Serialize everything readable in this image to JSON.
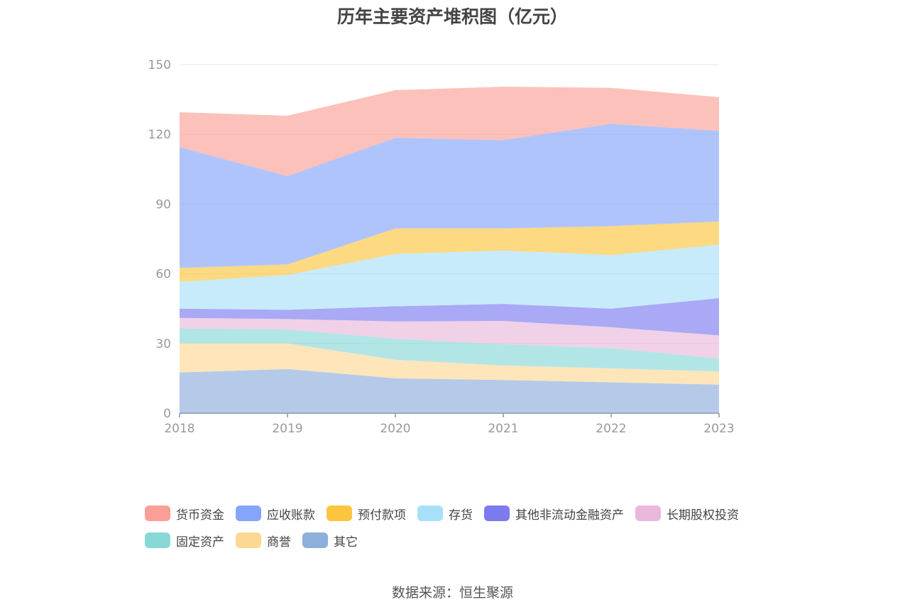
{
  "source_text": "数据来源：恒生聚源",
  "chart_data": {
    "type": "area",
    "stacked": true,
    "title": "历年主要资产堆积图（亿元）",
    "x": [
      "2018",
      "2019",
      "2020",
      "2021",
      "2022",
      "2023"
    ],
    "ylim": [
      0,
      150
    ],
    "yticks": [
      "0",
      "30",
      "60",
      "90",
      "120",
      "150"
    ],
    "grid": true,
    "legend_position": "bottom",
    "series": [
      {
        "name": "其它",
        "color": "#8eaedb",
        "values": [
          17.5,
          19,
          15,
          14.3,
          13.3,
          12.3
        ]
      },
      {
        "name": "商誉",
        "color": "#fdd895",
        "values": [
          12.5,
          11,
          8,
          6.2,
          6,
          5.7
        ]
      },
      {
        "name": "固定资产",
        "color": "#88d8d8",
        "values": [
          6.5,
          6,
          9,
          9.2,
          8.7,
          5.5
        ]
      },
      {
        "name": "长期股权投资",
        "color": "#eab8dc",
        "values": [
          4.5,
          4.5,
          7.5,
          10,
          9,
          10
        ]
      },
      {
        "name": "其他非流动金融资产",
        "color": "#7b7bef",
        "values": [
          4,
          4,
          6.5,
          7.3,
          8,
          16
        ]
      },
      {
        "name": "存货",
        "color": "#a9e0f9",
        "values": [
          11.5,
          15,
          22.5,
          23,
          23,
          23
        ]
      },
      {
        "name": "预付款项",
        "color": "#fcc53f",
        "values": [
          6,
          4.5,
          11,
          9.5,
          12.5,
          10
        ]
      },
      {
        "name": "应收账款",
        "color": "#85a4fb",
        "values": [
          52,
          38,
          39,
          38,
          44,
          39
        ]
      },
      {
        "name": "货币资金",
        "color": "#fb9f96",
        "values": [
          15,
          26,
          20.5,
          23,
          15.5,
          14.5
        ]
      }
    ]
  },
  "legend": {
    "rows": [
      [
        {
          "label": "货币资金",
          "color": "#fb9f96"
        },
        {
          "label": "应收账款",
          "color": "#85a4fb"
        },
        {
          "label": "预付款项",
          "color": "#fcc53f"
        },
        {
          "label": "存货",
          "color": "#a9e0f9"
        },
        {
          "label": "其他非流动金融资产",
          "color": "#7b7bef"
        },
        {
          "label": "长期股权投资",
          "color": "#eab8dc"
        }
      ],
      [
        {
          "label": "固定资产",
          "color": "#88d8d8"
        },
        {
          "label": "商誉",
          "color": "#fdd895"
        },
        {
          "label": "其它",
          "color": "#8eaedb"
        }
      ]
    ]
  }
}
